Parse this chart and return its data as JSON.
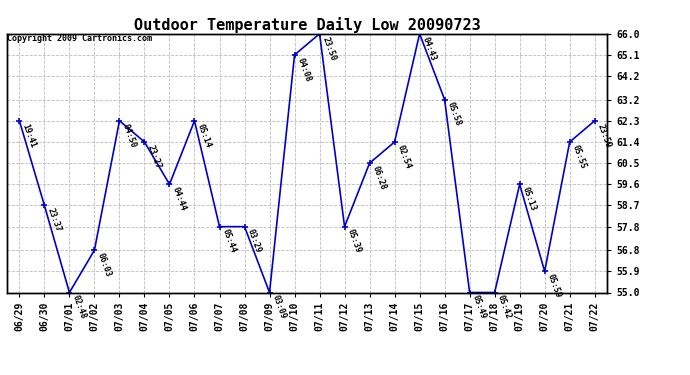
{
  "title": "Outdoor Temperature Daily Low 20090723",
  "copyright": "Copyright 2009 Cartronics.com",
  "ylim": [
    55.0,
    66.0
  ],
  "yticks": [
    55.0,
    55.9,
    56.8,
    57.8,
    58.7,
    59.6,
    60.5,
    61.4,
    62.3,
    63.2,
    64.2,
    65.1,
    66.0
  ],
  "dates": [
    "06/29",
    "06/30",
    "07/01",
    "07/02",
    "07/03",
    "07/04",
    "07/05",
    "07/06",
    "07/07",
    "07/08",
    "07/09",
    "07/10",
    "07/11",
    "07/12",
    "07/13",
    "07/14",
    "07/15",
    "07/16",
    "07/17",
    "07/18",
    "07/19",
    "07/20",
    "07/21",
    "07/22"
  ],
  "values": [
    62.3,
    58.7,
    55.0,
    56.8,
    62.3,
    61.4,
    59.6,
    62.3,
    57.8,
    57.8,
    55.0,
    65.1,
    66.0,
    57.8,
    60.5,
    61.4,
    66.0,
    63.2,
    55.0,
    55.0,
    59.6,
    55.9,
    61.4,
    62.3
  ],
  "labels": [
    "19:41",
    "23:37",
    "02:48",
    "06:03",
    "04:50",
    "23:27",
    "04:44",
    "05:14",
    "05:44",
    "03:29",
    "03:09",
    "04:08",
    "23:50",
    "05:39",
    "06:28",
    "02:54",
    "04:43",
    "05:58",
    "05:49",
    "05:42",
    "05:13",
    "05:59",
    "05:55",
    "23:59"
  ],
  "line_color": "#0000cc",
  "marker_color": "#0000cc",
  "bg_color": "#ffffff",
  "grid_color": "#bbbbbb",
  "title_fontsize": 11,
  "label_fontsize": 6,
  "tick_fontsize": 7,
  "copyright_fontsize": 6
}
